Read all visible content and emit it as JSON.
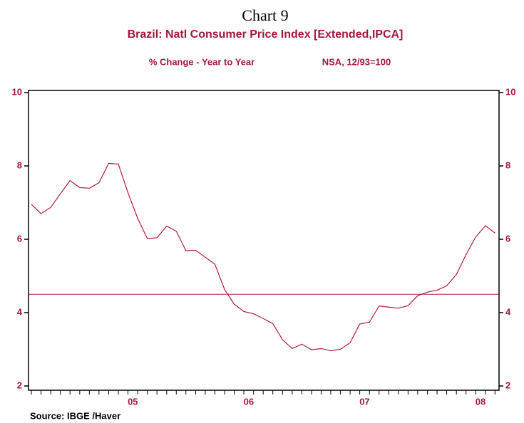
{
  "chart_data": {
    "type": "line",
    "header": "Chart 9",
    "title": "Brazil: Natl Consumer Price Index [Extended,IPCA]",
    "subtitle": "% Change - Year to Year",
    "note": "NSA, 12/93=100",
    "source": "Source:  IBGE /Haver",
    "x": [
      2004.625,
      2004.708,
      2004.792,
      2004.875,
      2004.958,
      2005.042,
      2005.125,
      2005.208,
      2005.292,
      2005.375,
      2005.458,
      2005.542,
      2005.625,
      2005.708,
      2005.792,
      2005.875,
      2005.958,
      2006.042,
      2006.125,
      2006.208,
      2006.292,
      2006.375,
      2006.458,
      2006.542,
      2006.625,
      2006.708,
      2006.792,
      2006.875,
      2006.958,
      2007.042,
      2007.125,
      2007.208,
      2007.292,
      2007.375,
      2007.458,
      2007.542,
      2007.625,
      2007.708,
      2007.792,
      2007.875,
      2007.958,
      2008.042,
      2008.125,
      2008.208,
      2008.292,
      2008.375,
      2008.458,
      2008.542,
      2008.625
    ],
    "series": [
      {
        "name": "IPCA",
        "color": "#b01c40",
        "values": [
          6.95,
          6.7,
          6.87,
          7.24,
          7.6,
          7.41,
          7.39,
          7.54,
          8.07,
          8.05,
          7.27,
          6.57,
          6.02,
          6.04,
          6.36,
          6.22,
          5.69,
          5.7,
          5.51,
          5.32,
          4.63,
          4.23,
          4.03,
          3.97,
          3.84,
          3.7,
          3.26,
          3.02,
          3.14,
          2.99,
          3.02,
          2.96,
          3.0,
          3.18,
          3.69,
          3.74,
          4.18,
          4.15,
          4.12,
          4.19,
          4.46,
          4.56,
          4.61,
          4.73,
          5.04,
          5.58,
          6.06,
          6.37,
          6.17
        ]
      }
    ],
    "reference_line": 4.5,
    "xlim": [
      2004.6,
      2008.66
    ],
    "xticks": [
      {
        "value": 2005.5,
        "label": "05"
      },
      {
        "value": 2006.5,
        "label": "06"
      },
      {
        "value": 2007.5,
        "label": "07"
      },
      {
        "value": 2008.5,
        "label": "08"
      }
    ],
    "ylim": [
      2,
      10
    ],
    "yticks": [
      2,
      4,
      6,
      8,
      10
    ],
    "y2lim": [
      2,
      10
    ],
    "y2ticks": [
      2,
      4,
      6,
      8,
      10
    ],
    "grid": false
  }
}
